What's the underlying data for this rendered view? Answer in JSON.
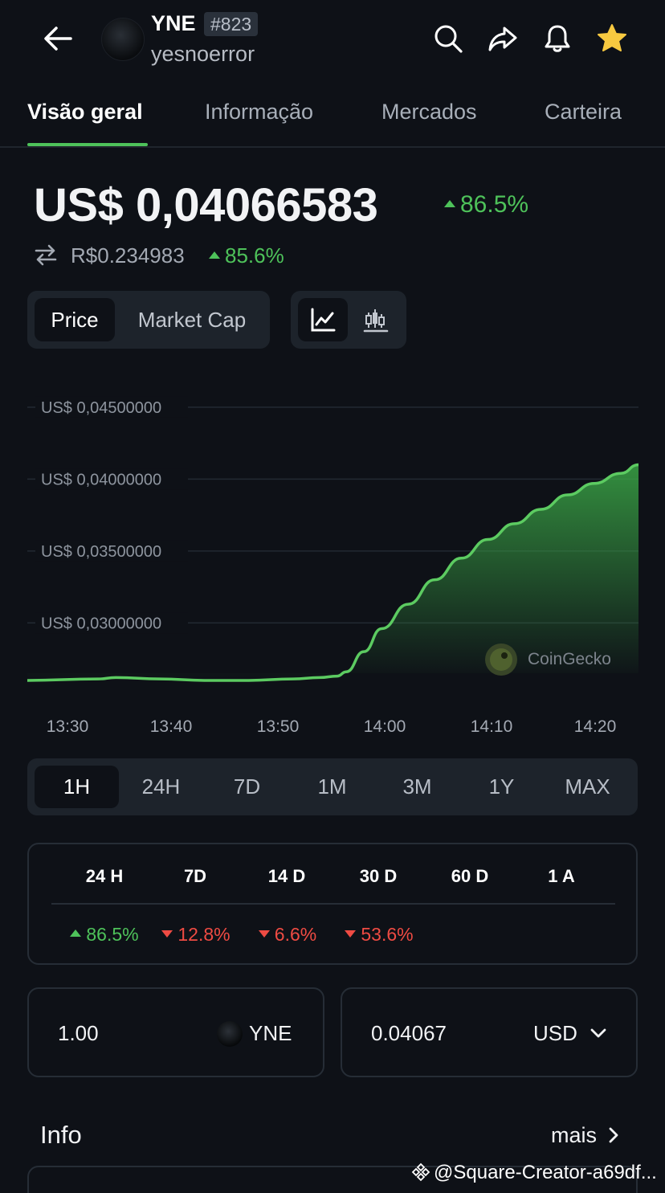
{
  "header": {
    "symbol": "YNE",
    "rank": "#823",
    "name": "yesnoerror",
    "icons": [
      "back-arrow-icon",
      "search-icon",
      "share-icon",
      "bell-icon",
      "star-icon"
    ],
    "star_color": "#f7c940"
  },
  "tabs": [
    {
      "label": "Visão geral",
      "active": true
    },
    {
      "label": "Informação",
      "active": false
    },
    {
      "label": "Mercados",
      "active": false
    },
    {
      "label": "Carteira",
      "active": false
    }
  ],
  "price": {
    "usd": "US$ 0,04066583",
    "usd_change": "86.5%",
    "brl": "R$0.234983",
    "brl_change": "85.6%"
  },
  "toggles": {
    "price_label": "Price",
    "market_cap_label": "Market Cap",
    "selected": "Price",
    "chart_modes": [
      "line-chart-icon",
      "candlestick-chart-icon"
    ],
    "selected_mode": "line-chart-icon"
  },
  "chart_data": {
    "type": "area",
    "x_ticks": [
      "13:30",
      "13:40",
      "13:50",
      "14:00",
      "14:10",
      "14:20"
    ],
    "y_ticks": [
      "US$ 0,04500000",
      "US$ 0,04000000",
      "US$ 0,03500000",
      "US$ 0,03000000"
    ],
    "ylim": [
      0.0265,
      0.0465
    ],
    "series": [
      {
        "points": [
          [
            0,
            0.026
          ],
          [
            8,
            0.0261
          ],
          [
            10,
            0.0262
          ],
          [
            15,
            0.0261
          ],
          [
            20,
            0.026
          ],
          [
            25,
            0.026
          ],
          [
            30,
            0.0261
          ],
          [
            33,
            0.0262
          ],
          [
            35,
            0.0263
          ],
          [
            36,
            0.0266
          ],
          [
            38,
            0.028
          ],
          [
            40,
            0.0296
          ],
          [
            43,
            0.0313
          ],
          [
            46,
            0.033
          ],
          [
            49,
            0.0345
          ],
          [
            52,
            0.0358
          ],
          [
            55,
            0.0369
          ],
          [
            58,
            0.0379
          ],
          [
            61,
            0.0389
          ],
          [
            64,
            0.0397
          ],
          [
            67,
            0.0404
          ],
          [
            69,
            0.041
          ]
        ]
      }
    ],
    "line_color": "#5ccb61",
    "grid": true,
    "watermark": "CoinGecko"
  },
  "ranges": [
    "1H",
    "24H",
    "7D",
    "1M",
    "3M",
    "1Y",
    "MAX"
  ],
  "selected_range": "1H",
  "performance": {
    "headers": [
      "24 H",
      "7D",
      "14 D",
      "30 D",
      "60 D",
      "1 A"
    ],
    "values": [
      {
        "v": "86.5%",
        "dir": "up"
      },
      {
        "v": "12.8%",
        "dir": "down"
      },
      {
        "v": "6.6%",
        "dir": "down"
      },
      {
        "v": "53.6%",
        "dir": "down"
      }
    ]
  },
  "converter": {
    "amount": "1.00",
    "from": "YNE",
    "result": "0.04067",
    "to": "USD"
  },
  "info": {
    "title": "Info",
    "more": "mais"
  },
  "watermark": "@Square-Creator-a69df..."
}
